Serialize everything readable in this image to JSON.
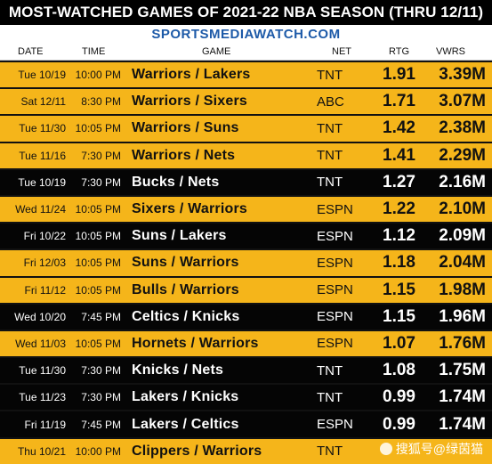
{
  "title": "MOST-WATCHED GAMES OF 2021-22 NBA SEASON (THRU 12/11)",
  "source": "SPORTSMEDIAWATCH.COM",
  "headers": {
    "date": "DATE",
    "time": "TIME",
    "game": "GAME",
    "net": "NET",
    "rtg": "RTG",
    "vwrs": "VWRS"
  },
  "rows": [
    {
      "date": "Tue 10/19",
      "time": "10:00 PM",
      "game": "Warriors / Lakers",
      "net": "TNT",
      "rtg": "1.91",
      "vwrs": "3.39M",
      "style": "gold"
    },
    {
      "date": "Sat 12/11",
      "time": "8:30 PM",
      "game": "Warriors / Sixers",
      "net": "ABC",
      "rtg": "1.71",
      "vwrs": "3.07M",
      "style": "gold"
    },
    {
      "date": "Tue 11/30",
      "time": "10:05 PM",
      "game": "Warriors / Suns",
      "net": "TNT",
      "rtg": "1.42",
      "vwrs": "2.38M",
      "style": "gold"
    },
    {
      "date": "Tue 11/16",
      "time": "7:30 PM",
      "game": "Warriors / Nets",
      "net": "TNT",
      "rtg": "1.41",
      "vwrs": "2.29M",
      "style": "gold"
    },
    {
      "date": "Tue 10/19",
      "time": "7:30 PM",
      "game": "Bucks / Nets",
      "net": "TNT",
      "rtg": "1.27",
      "vwrs": "2.16M",
      "style": "black"
    },
    {
      "date": "Wed 11/24",
      "time": "10:05 PM",
      "game": "Sixers / Warriors",
      "net": "ESPN",
      "rtg": "1.22",
      "vwrs": "2.10M",
      "style": "gold"
    },
    {
      "date": "Fri 10/22",
      "time": "10:05 PM",
      "game": "Suns / Lakers",
      "net": "ESPN",
      "rtg": "1.12",
      "vwrs": "2.09M",
      "style": "black"
    },
    {
      "date": "Fri 12/03",
      "time": "10:05 PM",
      "game": "Suns / Warriors",
      "net": "ESPN",
      "rtg": "1.18",
      "vwrs": "2.04M",
      "style": "gold"
    },
    {
      "date": "Fri 11/12",
      "time": "10:05 PM",
      "game": "Bulls / Warriors",
      "net": "ESPN",
      "rtg": "1.15",
      "vwrs": "1.98M",
      "style": "gold"
    },
    {
      "date": "Wed 10/20",
      "time": "7:45 PM",
      "game": "Celtics / Knicks",
      "net": "ESPN",
      "rtg": "1.15",
      "vwrs": "1.96M",
      "style": "black"
    },
    {
      "date": "Wed 11/03",
      "time": "10:05 PM",
      "game": "Hornets / Warriors",
      "net": "ESPN",
      "rtg": "1.07",
      "vwrs": "1.76M",
      "style": "gold"
    },
    {
      "date": "Tue 11/30",
      "time": "7:30 PM",
      "game": "Knicks / Nets",
      "net": "TNT",
      "rtg": "1.08",
      "vwrs": "1.75M",
      "style": "black"
    },
    {
      "date": "Tue 11/23",
      "time": "7:30 PM",
      "game": "Lakers / Knicks",
      "net": "TNT",
      "rtg": "0.99",
      "vwrs": "1.74M",
      "style": "black"
    },
    {
      "date": "Fri 11/19",
      "time": "7:45 PM",
      "game": "Lakers / Celtics",
      "net": "ESPN",
      "rtg": "0.99",
      "vwrs": "1.74M",
      "style": "black"
    },
    {
      "date": "Thu 10/21",
      "time": "10:00 PM",
      "game": "Clippers / Warriors",
      "net": "TNT",
      "rtg": "",
      "vwrs": "",
      "style": "gold"
    }
  ],
  "watermark": "搜狐号@绿茵猫"
}
